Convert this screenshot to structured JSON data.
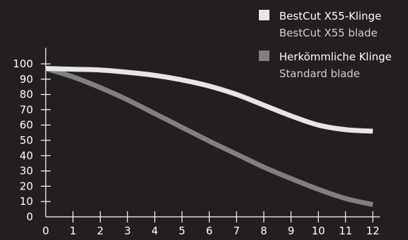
{
  "chart_data": {
    "type": "line",
    "title": "",
    "xlabel": "",
    "ylabel": "",
    "x": [
      0,
      1,
      2,
      3,
      4,
      5,
      6,
      7,
      8,
      9,
      10,
      11,
      12
    ],
    "x_ticks": [
      "0",
      "1",
      "2",
      "3",
      "4",
      "5",
      "6",
      "7",
      "8",
      "9",
      "10",
      "11",
      "12"
    ],
    "y_ticks": [
      "0",
      "10",
      "20",
      "30",
      "40",
      "50",
      "60",
      "70",
      "80",
      "90",
      "100"
    ],
    "xlim": [
      0,
      12
    ],
    "ylim": [
      0,
      100
    ],
    "grid": false,
    "legend_position": "top-right",
    "series": [
      {
        "name": "BestCut X55-Klinge",
        "subtitle": "BestCut X55 blade",
        "color": "#e6e6e6",
        "values": [
          97,
          96.5,
          96,
          94.5,
          92.5,
          89.5,
          85.5,
          80,
          73,
          66,
          60,
          57,
          56
        ]
      },
      {
        "name": "Herkömmliche Klinge",
        "subtitle": "Standard blade",
        "color": "#808080",
        "values": [
          97,
          91.5,
          84.5,
          76.5,
          67.5,
          58.5,
          49.5,
          41,
          32.5,
          25,
          18,
          12,
          8
        ]
      }
    ]
  }
}
